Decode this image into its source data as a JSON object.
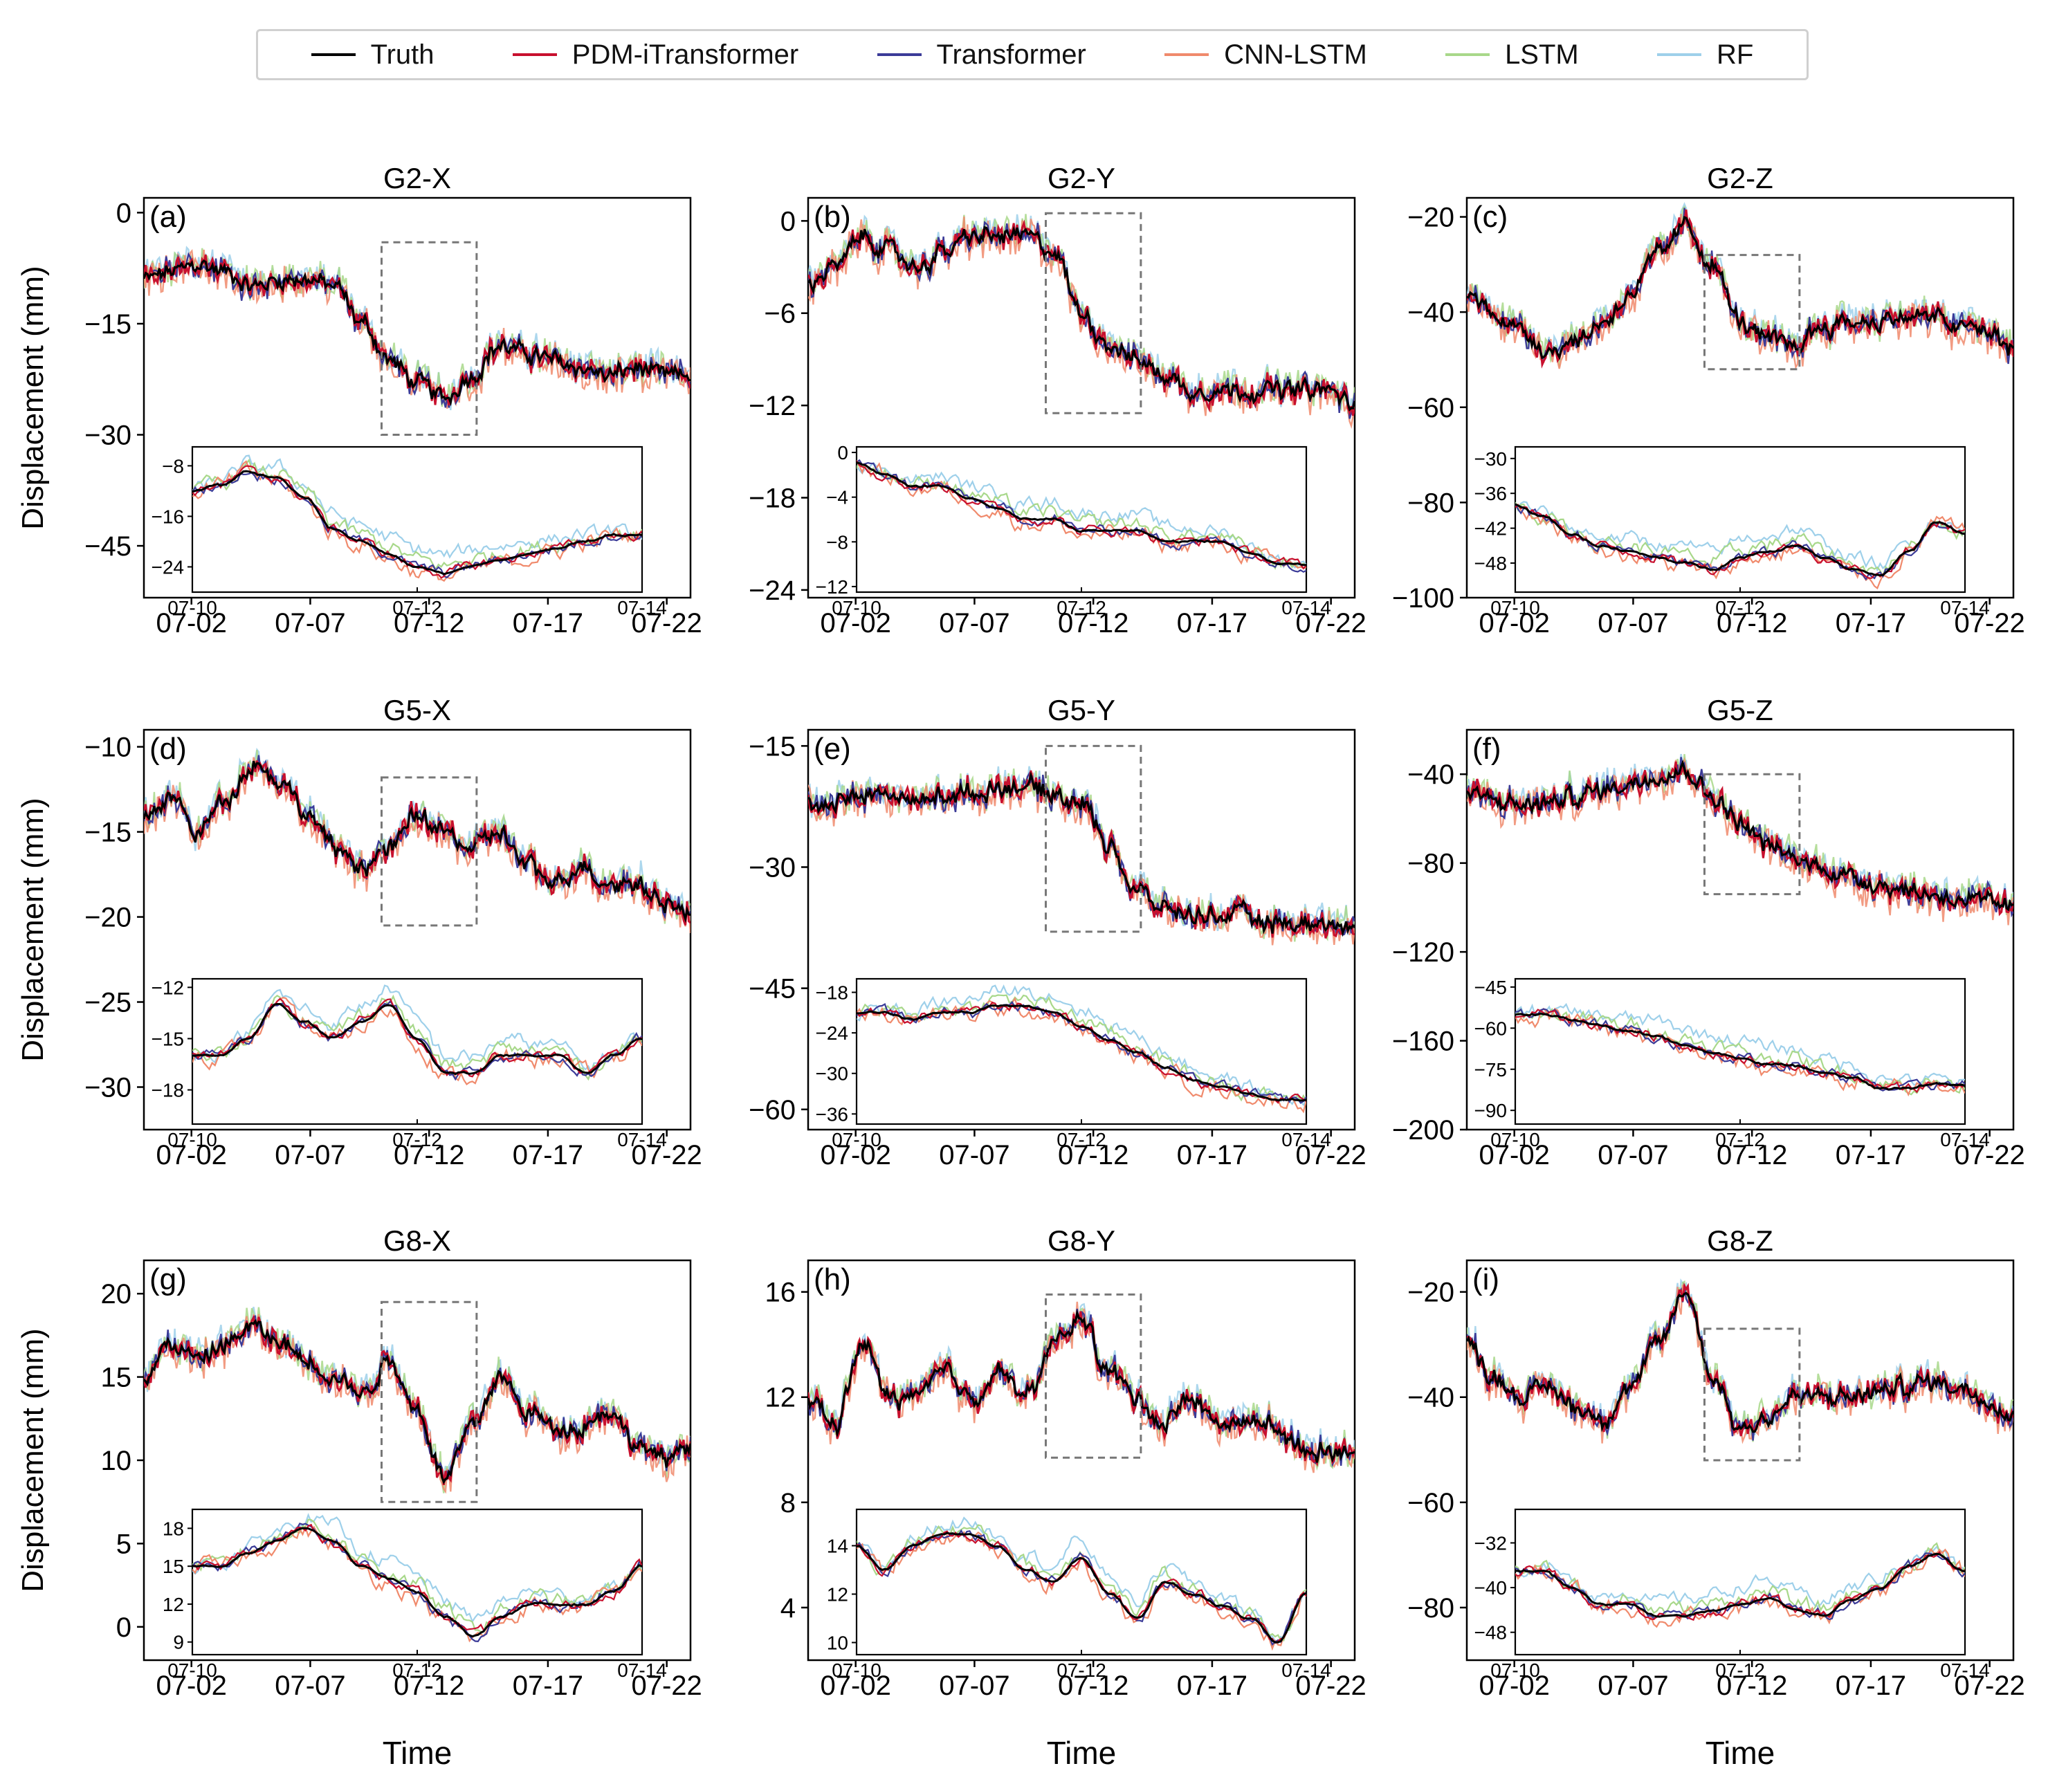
{
  "legend": [
    {
      "label": "Truth",
      "color": "#000000"
    },
    {
      "label": "PDM-iTransformer",
      "color": "#c8102e"
    },
    {
      "label": "Transformer",
      "color": "#3b3b98"
    },
    {
      "label": "CNN-LSTM",
      "color": "#f08a6c"
    },
    {
      "label": "LSTM",
      "color": "#a8d88a"
    },
    {
      "label": "RF",
      "color": "#9ed0ea"
    }
  ],
  "axis_titles": {
    "ylabel": "Displacement (mm)",
    "xlabel": "Time"
  },
  "chart_data": [
    {
      "type": "line",
      "title": "G2-X",
      "letter": "(a)",
      "ylim": [
        -52,
        2
      ],
      "yticks": [
        0,
        -15,
        -30,
        -45
      ],
      "xticks": [
        "07-02",
        "07-07",
        "07-12",
        "07-17",
        "07-22"
      ],
      "ctrl": [
        -9,
        -8,
        -7,
        -8,
        -10,
        -9,
        -9,
        -10,
        -15,
        -20,
        -23,
        -25,
        -22,
        -18,
        -19,
        -20,
        -21,
        -22,
        -21,
        -22,
        -22
      ],
      "zoom_box": {
        "x": [
          10,
          14
        ],
        "y": [
          -30,
          -4
        ]
      },
      "inset": {
        "ylim": [
          -28,
          -5
        ],
        "yticks": [
          -8,
          -16,
          -24
        ],
        "xticks": [
          "07-10",
          "07-12",
          "07-14"
        ],
        "ctrl": [
          -12,
          -11,
          -9,
          -10,
          -13,
          -18,
          -20,
          -22,
          -24,
          -25,
          -24,
          -23,
          -22,
          -21,
          -20,
          -19,
          -19
        ]
      }
    },
    {
      "type": "line",
      "title": "G2-Y",
      "letter": "(b)",
      "ylim": [
        -24.5,
        1.5
      ],
      "yticks": [
        0,
        -6,
        -12,
        -18,
        -24
      ],
      "xticks": [
        "07-02",
        "07-07",
        "07-12",
        "07-17",
        "07-22"
      ],
      "ctrl": [
        -4,
        -3,
        -1,
        -2,
        -3,
        -2,
        -1,
        -1,
        -1,
        -2,
        -6,
        -8,
        -9,
        -10,
        -11,
        -11,
        -11,
        -11,
        -11,
        -11,
        -12
      ],
      "zoom_box": {
        "x": [
          10,
          14
        ],
        "y": [
          -12.5,
          0.5
        ]
      },
      "inset": {
        "ylim": [
          -12.5,
          0.5
        ],
        "yticks": [
          0,
          -4,
          -8,
          -12
        ],
        "xticks": [
          "07-10",
          "07-12",
          "07-14"
        ],
        "ctrl": [
          -1,
          -2,
          -3,
          -3,
          -4,
          -5,
          -6,
          -6,
          -7,
          -7,
          -7,
          -8,
          -8,
          -8,
          -9,
          -10,
          -10
        ]
      }
    },
    {
      "type": "line",
      "title": "G2-Z",
      "letter": "(c)",
      "ylim": [
        -100,
        -16
      ],
      "yticks": [
        -20,
        -40,
        -60,
        -80,
        -100
      ],
      "xticks": [
        "07-02",
        "07-07",
        "07-12",
        "07-17",
        "07-22"
      ],
      "ctrl": [
        -36,
        -40,
        -44,
        -48,
        -46,
        -42,
        -36,
        -28,
        -22,
        -30,
        -42,
        -46,
        -47,
        -43,
        -42,
        -42,
        -41,
        -41,
        -43,
        -44,
        -48
      ],
      "zoom_box": {
        "x": [
          10,
          14
        ],
        "y": [
          -52,
          -28
        ]
      },
      "inset": {
        "ylim": [
          -53,
          -28
        ],
        "yticks": [
          -30,
          -36,
          -42,
          -48
        ],
        "xticks": [
          "07-10",
          "07-12",
          "07-14"
        ],
        "ctrl": [
          -38,
          -40,
          -43,
          -45,
          -46,
          -47,
          -48,
          -49,
          -47,
          -46,
          -45,
          -47,
          -49,
          -50,
          -46,
          -41,
          -43
        ]
      }
    },
    {
      "type": "line",
      "title": "G5-X",
      "letter": "(d)",
      "ylim": [
        -32.5,
        -9
      ],
      "yticks": [
        -10,
        -15,
        -20,
        -25,
        -30
      ],
      "xticks": [
        "07-02",
        "07-07",
        "07-12",
        "07-17",
        "07-22"
      ],
      "ctrl": [
        -14,
        -13,
        -15,
        -13,
        -11,
        -12,
        -14,
        -16,
        -17,
        -16,
        -14,
        -15,
        -16,
        -15,
        -17,
        -18,
        -17,
        -18,
        -18,
        -19,
        -20
      ],
      "zoom_box": {
        "x": [
          10,
          14
        ],
        "y": [
          -20.5,
          -11.8
        ]
      },
      "inset": {
        "ylim": [
          -20,
          -11.5
        ],
        "yticks": [
          -12,
          -15,
          -18
        ],
        "xticks": [
          "07-10",
          "07-12",
          "07-14"
        ],
        "ctrl": [
          -16,
          -16,
          -15,
          -13,
          -14,
          -15,
          -14,
          -13,
          -15,
          -17,
          -17,
          -16,
          -16,
          -16,
          -17,
          -16,
          -15
        ]
      }
    },
    {
      "type": "line",
      "title": "G5-Y",
      "letter": "(e)",
      "ylim": [
        -62.5,
        -13
      ],
      "yticks": [
        -15,
        -30,
        -45,
        -60
      ],
      "xticks": [
        "07-02",
        "07-07",
        "07-12",
        "07-17",
        "07-22"
      ],
      "ctrl": [
        -22,
        -22,
        -21,
        -21,
        -22,
        -21,
        -21,
        -20,
        -20,
        -21,
        -22,
        -27,
        -33,
        -35,
        -36,
        -36,
        -36,
        -37,
        -37,
        -37,
        -38
      ],
      "zoom_box": {
        "x": [
          10,
          14
        ],
        "y": [
          -38,
          -15
        ]
      },
      "inset": {
        "ylim": [
          -37.5,
          -16
        ],
        "yticks": [
          -18,
          -24,
          -30,
          -36
        ],
        "xticks": [
          "07-10",
          "07-12",
          "07-14"
        ],
        "ctrl": [
          -21,
          -21,
          -22,
          -21,
          -21,
          -20,
          -20,
          -21,
          -23,
          -25,
          -27,
          -29,
          -31,
          -32,
          -33,
          -34,
          -34
        ]
      }
    },
    {
      "type": "line",
      "title": "G5-Z",
      "letter": "(f)",
      "ylim": [
        -200,
        -20
      ],
      "yticks": [
        -40,
        -80,
        -120,
        -160,
        -200
      ],
      "xticks": [
        "07-02",
        "07-07",
        "07-12",
        "07-17",
        "07-22"
      ],
      "ctrl": [
        -48,
        -52,
        -54,
        -53,
        -50,
        -47,
        -44,
        -40,
        -38,
        -50,
        -62,
        -72,
        -78,
        -82,
        -86,
        -89,
        -92,
        -94,
        -96,
        -98,
        -100
      ],
      "zoom_box": {
        "x": [
          10,
          14
        ],
        "y": [
          -94,
          -40
        ]
      },
      "inset": {
        "ylim": [
          -95,
          -42
        ],
        "yticks": [
          -45,
          -60,
          -75,
          -90
        ],
        "xticks": [
          "07-10",
          "07-12",
          "07-14"
        ],
        "ctrl": [
          -55,
          -55,
          -57,
          -59,
          -61,
          -63,
          -66,
          -69,
          -71,
          -73,
          -74,
          -76,
          -78,
          -82,
          -82,
          -80,
          -81
        ]
      }
    },
    {
      "type": "line",
      "title": "G8-X",
      "letter": "(g)",
      "ylim": [
        -2,
        22
      ],
      "yticks": [
        0,
        5,
        10,
        15,
        20
      ],
      "xticks": [
        "07-02",
        "07-07",
        "07-12",
        "07-17",
        "07-22"
      ],
      "ctrl": [
        15,
        17,
        16,
        17,
        18,
        17,
        16,
        15,
        14,
        16,
        13,
        9,
        12,
        15,
        13,
        12,
        12,
        13,
        11,
        10,
        11
      ],
      "zoom_box": {
        "x": [
          10,
          14
        ],
        "y": [
          7.5,
          19.5
        ]
      },
      "inset": {
        "ylim": [
          8,
          19.5
        ],
        "yticks": [
          9,
          12,
          15,
          18
        ],
        "xticks": [
          "07-10",
          "07-12",
          "07-14"
        ],
        "ctrl": [
          15,
          15,
          16,
          17,
          18,
          17,
          15,
          14,
          13,
          11,
          9.5,
          11,
          12,
          12,
          12,
          13,
          15
        ]
      }
    },
    {
      "type": "line",
      "title": "G8-Y",
      "letter": "(h)",
      "ylim": [
        2,
        17.2
      ],
      "yticks": [
        4,
        8,
        12,
        16
      ],
      "xticks": [
        "07-02",
        "07-07",
        "07-12",
        "07-17",
        "07-22"
      ],
      "ctrl": [
        12,
        11,
        14,
        12,
        12,
        13,
        12,
        13,
        12,
        14,
        15,
        13,
        12,
        11,
        12,
        11,
        11,
        11,
        10,
        10,
        10
      ],
      "zoom_box": {
        "x": [
          10,
          14
        ],
        "y": [
          9.7,
          15.9
        ]
      },
      "inset": {
        "ylim": [
          9.5,
          15.5
        ],
        "yticks": [
          10,
          12,
          14
        ],
        "xticks": [
          "07-10",
          "07-12",
          "07-14"
        ],
        "ctrl": [
          14,
          13,
          14,
          14.5,
          14.5,
          14,
          13,
          12.5,
          13.5,
          12,
          11,
          12.5,
          12,
          11.5,
          11,
          10,
          12
        ]
      }
    },
    {
      "type": "line",
      "title": "G8-Z",
      "letter": "(i)",
      "ylim": [
        -90,
        -14
      ],
      "yticks": [
        -20,
        -40,
        -60,
        -80
      ],
      "xticks": [
        "07-02",
        "07-07",
        "07-12",
        "07-17",
        "07-22"
      ],
      "ctrl": [
        -30,
        -36,
        -40,
        -38,
        -42,
        -44,
        -38,
        -30,
        -20,
        -36,
        -46,
        -44,
        -40,
        -40,
        -40,
        -39,
        -38,
        -37,
        -38,
        -40,
        -44
      ],
      "zoom_box": {
        "x": [
          10,
          14
        ],
        "y": [
          -52,
          -27
        ]
      },
      "inset": {
        "ylim": [
          -52,
          -26
        ],
        "yticks": [
          -32,
          -40,
          -48
        ],
        "xticks": [
          "07-10",
          "07-12",
          "07-14"
        ],
        "ctrl": [
          -37,
          -37,
          -40,
          -43,
          -43,
          -45,
          -45,
          -44,
          -43,
          -42,
          -44,
          -45,
          -42,
          -40,
          -36,
          -34,
          -37
        ]
      }
    }
  ]
}
